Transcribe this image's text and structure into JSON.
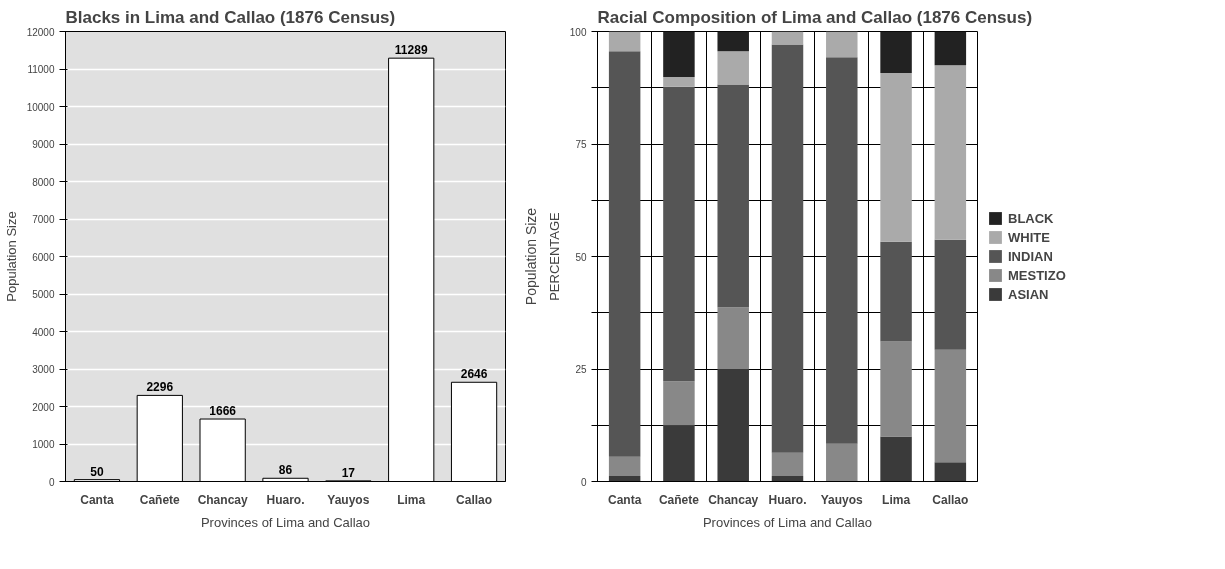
{
  "chart_data": [
    {
      "type": "bar",
      "title": "Blacks in Lima and Callao (1876 Census)",
      "xlabel": "Provinces of Lima and Callao",
      "ylabel": "Population Size",
      "categories": [
        "Canta",
        "Cañete",
        "Chancay",
        "Huaro.",
        "Yauyos",
        "Lima",
        "Callao"
      ],
      "values": [
        50,
        2296,
        1666,
        86,
        17,
        11289,
        2646
      ],
      "color": "#ffffff",
      "data_labels": true,
      "ylim": [
        0,
        12000
      ],
      "yticks": [
        0,
        1000,
        2000,
        3000,
        4000,
        5000,
        6000,
        7000,
        8000,
        9000,
        10000,
        11000,
        12000
      ],
      "grid": "y",
      "legend": false
    },
    {
      "type": "bar",
      "stacked": true,
      "title": "Racial Composition of Lima and Callao (1876 Census)",
      "xlabel": "Provinces of Lima and Callao",
      "ylabel": "PERCENTAGE",
      "annotations": [
        "Population Size"
      ],
      "categories": [
        "Canta",
        "Cañete",
        "Chancay",
        "Huaro.",
        "Yauyos",
        "Lima",
        "Callao"
      ],
      "series": [
        {
          "name": "ASIAN",
          "color": "#3a3a3a",
          "values": [
            1.2,
            12.5,
            25,
            1.2,
            0,
            10,
            4.3
          ]
        },
        {
          "name": "MESTIZO",
          "color": "#888888",
          "values": [
            4.3,
            9.8,
            13.7,
            5.2,
            8.4,
            21.1,
            25
          ]
        },
        {
          "name": "INDIAN",
          "color": "#555555",
          "values": [
            90.1,
            65.4,
            49.5,
            90.7,
            85.9,
            22.2,
            24.4
          ]
        },
        {
          "name": "WHITE",
          "color": "#aaaaaa",
          "values": [
            4.4,
            2.2,
            7.4,
            2.9,
            5.7,
            37.5,
            38.8
          ]
        },
        {
          "name": "BLACK",
          "color": "#222222",
          "values": [
            0,
            10.1,
            4.4,
            0,
            0,
            9.2,
            7.5
          ]
        }
      ],
      "ylim": [
        0,
        100
      ],
      "yticks": [
        0,
        {
          "value": 12.5,
          "label": null
        },
        25,
        {
          "value": 37.5,
          "label": null
        },
        50,
        {
          "value": 62.5,
          "label": null
        },
        75,
        {
          "value": 87.5,
          "label": null
        },
        100
      ],
      "grid": true,
      "legend": "right"
    }
  ]
}
